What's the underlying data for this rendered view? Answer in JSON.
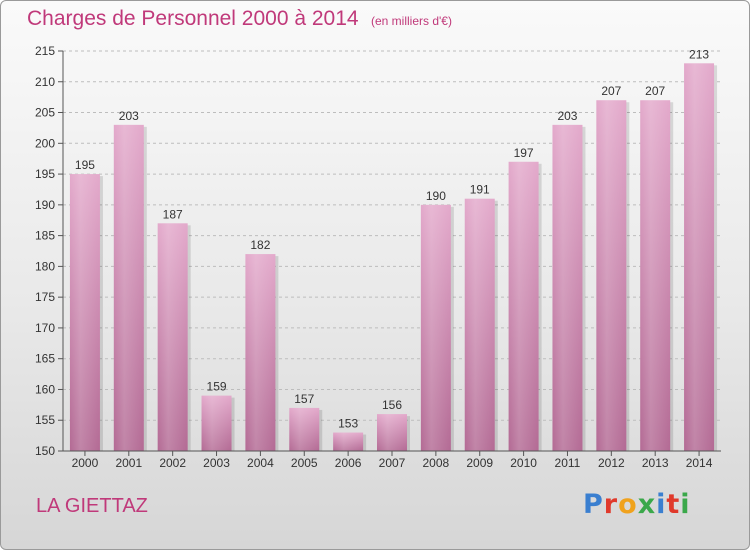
{
  "header": {
    "title": "Charges de Personnel 2000 à 2014",
    "unit": "(en milliers d'€)"
  },
  "footer": {
    "commune": "LA GIETTAZ",
    "logo_letters": [
      {
        "ch": "P",
        "color": "#3a7fd0"
      },
      {
        "ch": "r",
        "color": "#e0392b"
      },
      {
        "ch": "o",
        "color": "#f0a21d"
      },
      {
        "ch": "x",
        "color": "#3aa84a"
      },
      {
        "ch": "i",
        "color": "#3a7fd0"
      },
      {
        "ch": "t",
        "color": "#e0392b"
      },
      {
        "ch": "i",
        "color": "#3aa84a"
      }
    ]
  },
  "chart_data": {
    "type": "bar",
    "title": "Charges de Personnel 2000 à 2014",
    "categories": [
      "2000",
      "2001",
      "2002",
      "2003",
      "2004",
      "2005",
      "2006",
      "2007",
      "2008",
      "2009",
      "2010",
      "2011",
      "2012",
      "2013",
      "2014"
    ],
    "values": [
      195,
      203,
      187,
      159,
      182,
      157,
      153,
      156,
      190,
      191,
      197,
      203,
      207,
      207,
      213
    ],
    "data_labels": [
      "195",
      "203",
      "187",
      "159",
      "182",
      "157",
      "153",
      "156",
      "190",
      "191",
      "197",
      "203",
      "207",
      "207",
      "213"
    ],
    "ylim": [
      150,
      215
    ],
    "yticks": [
      150,
      155,
      160,
      165,
      170,
      175,
      180,
      185,
      190,
      195,
      200,
      205,
      210,
      215
    ],
    "grid": true,
    "bar_color": "#d990b8",
    "text_color": "#333333"
  }
}
